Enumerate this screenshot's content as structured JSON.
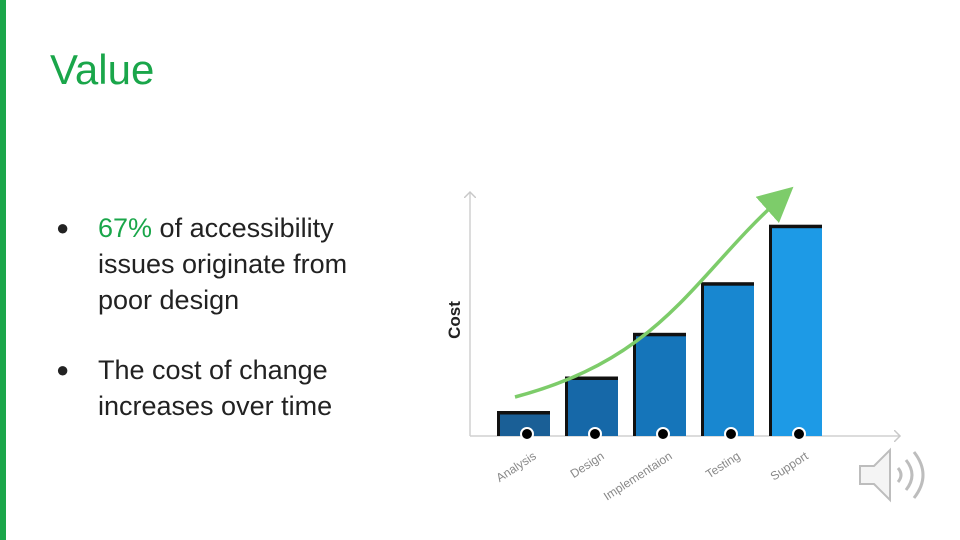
{
  "slide": {
    "title": "Value",
    "bullets": [
      {
        "highlight": "67%",
        "text": " of accessibility issues originate from poor design"
      },
      {
        "highlight": "",
        "text": "The cost of change increases over time"
      }
    ]
  },
  "colors": {
    "accent": "#1aa64a",
    "arrow": "#7dcc6a",
    "bars": [
      "#1a5f96",
      "#1668a8",
      "#1575ba",
      "#1887d0",
      "#1d9ae6"
    ]
  },
  "chart_data": {
    "type": "bar",
    "ylabel": "Cost",
    "xlabel": "",
    "categories": [
      "Analysis",
      "Design",
      "Implementaion",
      "Testing",
      "Support"
    ],
    "values": [
      1,
      2.5,
      4.4,
      6.6,
      9.1
    ],
    "ylim": [
      0,
      10
    ],
    "trend_arrow": true,
    "grid": false
  },
  "icons": {
    "speaker": "speaker-icon"
  }
}
